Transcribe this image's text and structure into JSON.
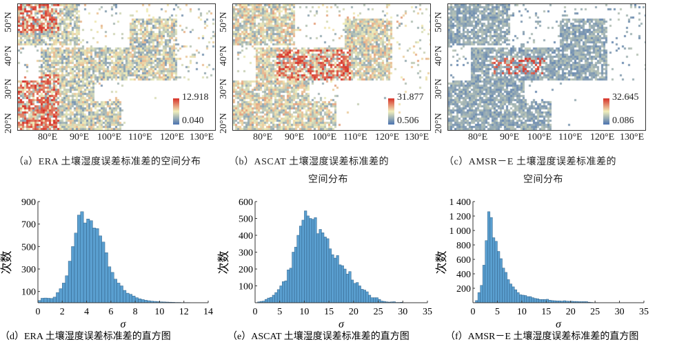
{
  "maps": [
    {
      "id": "a",
      "lat_labels": [
        "50°N",
        "40°N",
        "30°N",
        "20°N"
      ],
      "lon_labels": [
        "80°E",
        "90°E",
        "100°E",
        "110°E",
        "120°E",
        "130°E"
      ],
      "colorbar_max": "12.918",
      "colorbar_min": "0.040",
      "caption_line1": "（a）ERA 土壤湿度误差标准差的空间分布",
      "caption_line2": "",
      "dominant": "mixed-red"
    },
    {
      "id": "b",
      "lat_labels": [
        "50°N",
        "40°N",
        "30°N",
        "20°N"
      ],
      "lon_labels": [
        "80°E",
        "90°E",
        "100°E",
        "110°E",
        "120°E",
        "130°E"
      ],
      "colorbar_max": "31.877",
      "colorbar_min": "0.506",
      "caption_line1": "（b）ASCAT 土壤湿度误差标准差的",
      "caption_line2": "空间分布",
      "dominant": "mixed-yellow"
    },
    {
      "id": "c",
      "lat_labels": [
        "50°N",
        "40°N",
        "30°N",
        "20°N"
      ],
      "lon_labels": [
        "80°E",
        "90°E",
        "100°E",
        "110°E",
        "120°E",
        "130°E"
      ],
      "colorbar_max": "32.645",
      "colorbar_min": "0.086",
      "caption_line1": "（c）AMSR－E 土壤湿度误差标准差的",
      "caption_line2": "空间分布",
      "dominant": "blue"
    }
  ],
  "colors": {
    "bar": "#5a9fd0",
    "bar_edge": "#2f5f86",
    "low": "#4a72b0",
    "mid": "#f0eebb",
    "high": "#d73027"
  },
  "chart_data": [
    {
      "type": "bar",
      "title": "",
      "caption": "（d）ERA 土壤湿度误差标准差的直方图",
      "xlabel": "σ",
      "ylabel": "次数",
      "xlim": [
        0,
        14
      ],
      "ylim": [
        0,
        900
      ],
      "bin_start": 0,
      "bin_width": 0.25,
      "xticks": [
        "0",
        "2",
        "4",
        "6",
        "8",
        "10",
        "12",
        "14"
      ],
      "yticks": [
        "100",
        "300",
        "500",
        "700",
        "900"
      ],
      "values": [
        20,
        40,
        42,
        40,
        38,
        50,
        90,
        125,
        175,
        240,
        370,
        500,
        620,
        780,
        810,
        710,
        745,
        730,
        665,
        660,
        595,
        540,
        445,
        320,
        270,
        210,
        175,
        150,
        110,
        85,
        75,
        60,
        45,
        35,
        28,
        22,
        18,
        14,
        12,
        10,
        8,
        7,
        6,
        5,
        4,
        3,
        3,
        2,
        2,
        2,
        1,
        1,
        1,
        1,
        1,
        1
      ]
    },
    {
      "type": "bar",
      "title": "",
      "caption": "（e）ASCAT 土壤湿度误差标准差的直方图",
      "xlabel": "σ",
      "ylabel": "次数",
      "xlim": [
        0,
        35
      ],
      "ylim": [
        0,
        600
      ],
      "bin_start": 0,
      "bin_width": 0.5,
      "xticks": [
        "0",
        "5",
        "10",
        "15",
        "20",
        "25",
        "30",
        "35"
      ],
      "yticks": [
        "100",
        "200",
        "300",
        "400",
        "500",
        "600"
      ],
      "values": [
        0,
        5,
        8,
        10,
        20,
        28,
        32,
        45,
        60,
        78,
        100,
        125,
        130,
        195,
        205,
        300,
        330,
        400,
        455,
        490,
        545,
        515,
        500,
        495,
        505,
        410,
        435,
        415,
        390,
        380,
        320,
        285,
        265,
        280,
        225,
        220,
        200,
        170,
        185,
        135,
        115,
        120,
        100,
        80,
        75,
        65,
        45,
        30,
        30,
        30,
        20,
        10,
        8,
        5,
        4,
        5,
        6,
        2,
        2,
        3,
        1,
        1,
        1,
        0,
        0,
        0,
        0,
        0,
        0,
        0
      ]
    },
    {
      "type": "bar",
      "title": "",
      "caption": "（f）AMSR－E 土壤湿度误差标准差的直方图",
      "xlabel": "σ",
      "ylabel": "次数",
      "xlim": [
        0,
        35
      ],
      "ylim": [
        0,
        1400
      ],
      "bin_start": 0,
      "bin_width": 0.5,
      "xticks": [
        "0",
        "5",
        "10",
        "15",
        "20",
        "25",
        "30",
        "35"
      ],
      "yticks": [
        "200",
        "400",
        "600",
        "800",
        "1 000",
        "1 200",
        "1 400"
      ],
      "values": [
        0,
        30,
        140,
        240,
        520,
        860,
        1260,
        1180,
        900,
        850,
        710,
        610,
        480,
        420,
        320,
        260,
        220,
        180,
        140,
        110,
        105,
        100,
        85,
        85,
        70,
        60,
        55,
        45,
        45,
        45,
        48,
        35,
        30,
        28,
        25,
        25,
        22,
        28,
        22,
        20,
        20,
        18,
        18,
        15,
        15,
        15,
        15,
        8,
        5,
        3,
        3,
        2,
        2,
        2,
        1,
        1,
        1,
        1,
        1,
        1,
        0,
        0,
        0,
        0,
        0,
        0,
        0,
        0,
        0,
        0
      ]
    }
  ]
}
